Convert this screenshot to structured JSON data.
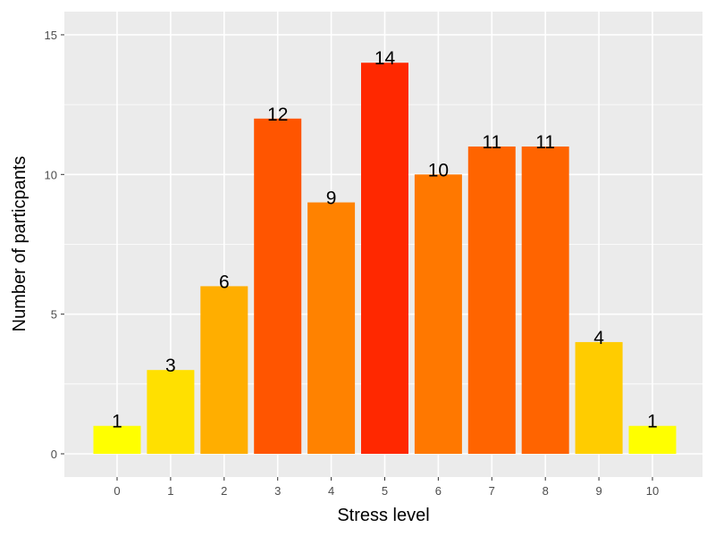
{
  "chart_data": {
    "type": "bar",
    "title": "",
    "xlabel": "Stress level",
    "ylabel": "Number of particpants",
    "categories": [
      "0",
      "1",
      "2",
      "3",
      "4",
      "5",
      "6",
      "7",
      "8",
      "9",
      "10"
    ],
    "values": [
      1,
      3,
      6,
      12,
      9,
      14,
      10,
      11,
      11,
      4,
      1
    ],
    "data_labels": [
      "1",
      "3",
      "6",
      "12",
      "9",
      "14",
      "10",
      "11",
      "11",
      "4",
      "1"
    ],
    "bar_colors": [
      "#ffff00",
      "#ffe000",
      "#ffae00",
      "#ff5500",
      "#ff8200",
      "#ff2800",
      "#ff7800",
      "#ff6400",
      "#ff6400",
      "#ffcc00",
      "#ffff00"
    ],
    "ylim": [
      0,
      15.6
    ],
    "yticks": [
      0,
      5,
      10,
      15
    ],
    "ytick_labels": [
      "0",
      "5",
      "10",
      "15"
    ],
    "grid": true,
    "legend": "none",
    "panel_background": "#ebebeb",
    "grid_color": "#ffffff"
  }
}
